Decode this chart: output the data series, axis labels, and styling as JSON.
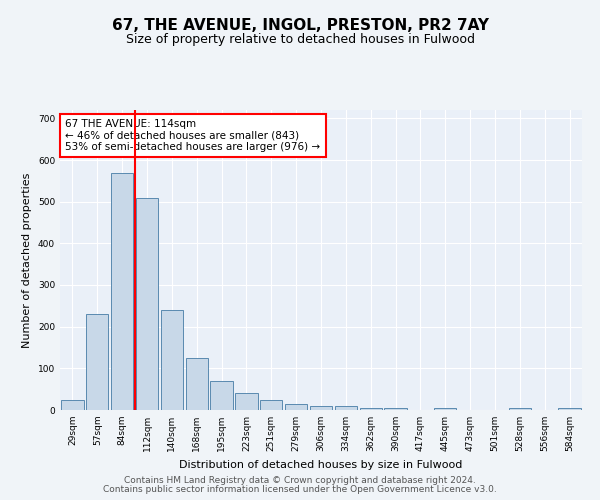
{
  "title_line1": "67, THE AVENUE, INGOL, PRESTON, PR2 7AY",
  "title_line2": "Size of property relative to detached houses in Fulwood",
  "xlabel": "Distribution of detached houses by size in Fulwood",
  "ylabel": "Number of detached properties",
  "bar_labels": [
    "29sqm",
    "57sqm",
    "84sqm",
    "112sqm",
    "140sqm",
    "168sqm",
    "195sqm",
    "223sqm",
    "251sqm",
    "279sqm",
    "306sqm",
    "334sqm",
    "362sqm",
    "390sqm",
    "417sqm",
    "445sqm",
    "473sqm",
    "501sqm",
    "528sqm",
    "556sqm",
    "584sqm"
  ],
  "bar_values": [
    25,
    230,
    570,
    510,
    240,
    125,
    70,
    40,
    25,
    15,
    10,
    10,
    5,
    5,
    0,
    5,
    0,
    0,
    5,
    0,
    5
  ],
  "bar_color": "#c8d8e8",
  "bar_edgecolor": "#5a8ab0",
  "vline_color": "red",
  "vline_index": 2.5,
  "annotation_text": "67 THE AVENUE: 114sqm\n← 46% of detached houses are smaller (843)\n53% of semi-detached houses are larger (976) →",
  "annotation_box_edgecolor": "red",
  "ylim": [
    0,
    720
  ],
  "yticks": [
    0,
    100,
    200,
    300,
    400,
    500,
    600,
    700
  ],
  "footer_line1": "Contains HM Land Registry data © Crown copyright and database right 2024.",
  "footer_line2": "Contains public sector information licensed under the Open Government Licence v3.0.",
  "bg_color": "#f0f4f8",
  "plot_bg_color": "#eaf0f8",
  "grid_color": "#ffffff",
  "title_fontsize": 11,
  "subtitle_fontsize": 9,
  "axis_label_fontsize": 8,
  "tick_fontsize": 6.5,
  "footer_fontsize": 6.5
}
